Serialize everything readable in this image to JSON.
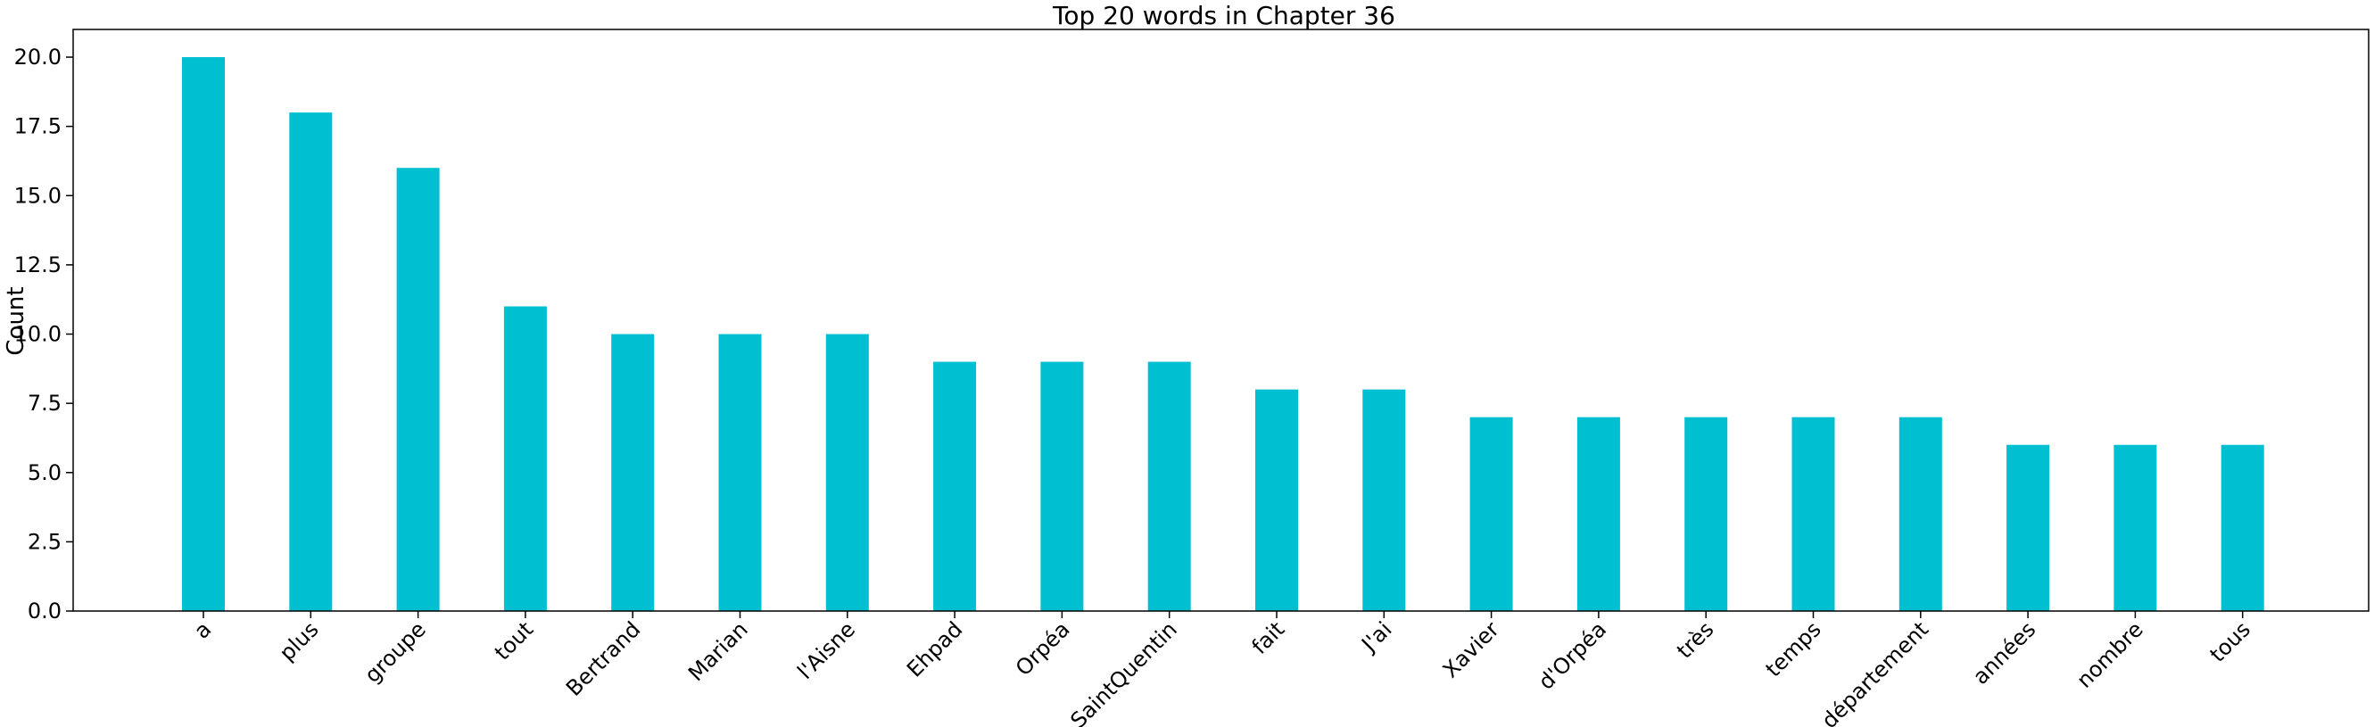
{
  "chart_data": {
    "type": "bar",
    "title": "Top 20 words in Chapter 36",
    "xlabel": "",
    "ylabel": "Count",
    "categories": [
      "a",
      "plus",
      "groupe",
      "tout",
      "Bertrand",
      "Marian",
      "l'Aisne",
      "Ehpad",
      "Orpéa",
      "SaintQuentin",
      "fait",
      "J'ai",
      "Xavier",
      "d'Orpéa",
      "très",
      "temps",
      "département",
      "années",
      "nombre",
      "tous"
    ],
    "values": [
      20,
      18,
      16,
      11,
      10,
      10,
      10,
      9,
      9,
      9,
      8,
      8,
      7,
      7,
      7,
      7,
      7,
      6,
      6,
      6
    ],
    "ylim": [
      0,
      21
    ],
    "yticks": [
      "0.0",
      "2.5",
      "5.0",
      "7.5",
      "10.0",
      "12.5",
      "15.0",
      "17.5",
      "20.0"
    ],
    "grid": false,
    "bar_color": "#00bfd0"
  }
}
